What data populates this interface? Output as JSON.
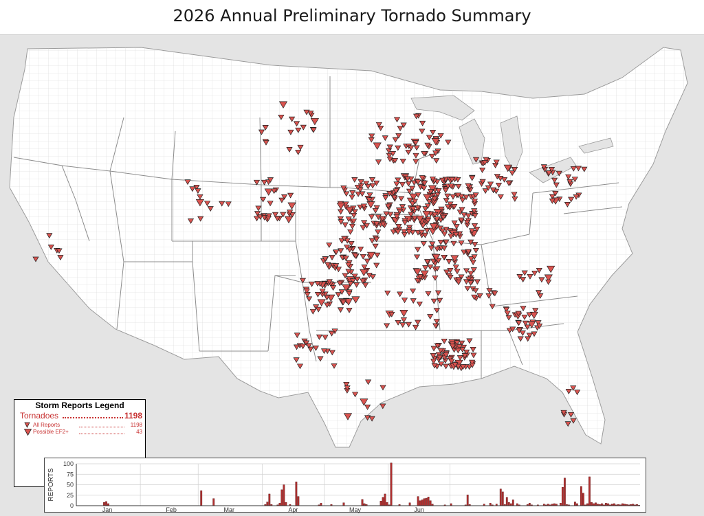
{
  "page": {
    "title": "2026 Annual Preliminary Tornado Summary"
  },
  "legend": {
    "title": "Storm Reports Legend",
    "tornadoes_label": "Tornadoes",
    "tornadoes_value": "1198",
    "all_reports_label": "All Reports",
    "all_reports_value": "1198",
    "possible_ef2_label": "Possible EF2+",
    "possible_ef2_value": "43",
    "colors": {
      "text": "#c83232",
      "marker": "#d9534f",
      "marker_outline": "#222222"
    }
  },
  "map": {
    "description_markers": "tornado report markers (red inverted triangles)"
  },
  "chart_data": {
    "type": "bar",
    "ylabel": "REPORTS",
    "ylim": [
      0,
      100
    ],
    "yticks": [
      0,
      25,
      50,
      75,
      100
    ],
    "month_labels": [
      "Jan",
      "Feb",
      "Mar",
      "Apr",
      "May",
      "Jun"
    ],
    "values": [
      0,
      0,
      0,
      0,
      0,
      0,
      0,
      0,
      0,
      0,
      0,
      0,
      0,
      8,
      10,
      5,
      0,
      0,
      0,
      0,
      0,
      0,
      0,
      0,
      0,
      0,
      0,
      0,
      0,
      0,
      0,
      0,
      0,
      0,
      0,
      0,
      0,
      0,
      0,
      0,
      0,
      0,
      0,
      0,
      0,
      0,
      0,
      0,
      0,
      0,
      0,
      0,
      0,
      0,
      0,
      0,
      0,
      0,
      0,
      0,
      36,
      0,
      0,
      0,
      0,
      0,
      17,
      0,
      0,
      0,
      0,
      0,
      0,
      0,
      0,
      0,
      0,
      0,
      0,
      0,
      0,
      0,
      0,
      0,
      0,
      0,
      0,
      0,
      0,
      0,
      0,
      3,
      9,
      28,
      3,
      0,
      0,
      2,
      6,
      38,
      50,
      8,
      0,
      3,
      0,
      0,
      57,
      22,
      0,
      0,
      0,
      0,
      0,
      0,
      0,
      0,
      0,
      2,
      6,
      0,
      0,
      0,
      0,
      3,
      0,
      0,
      0,
      0,
      0,
      7,
      0,
      0,
      0,
      0,
      0,
      0,
      0,
      0,
      15,
      5,
      3,
      0,
      0,
      0,
      0,
      0,
      0,
      11,
      20,
      28,
      8,
      2,
      102,
      0,
      0,
      0,
      3,
      0,
      0,
      0,
      0,
      7,
      0,
      0,
      0,
      22,
      12,
      14,
      17,
      18,
      21,
      12,
      4,
      0,
      0,
      0,
      0,
      0,
      2,
      0,
      0,
      5,
      0,
      0,
      0,
      0,
      0,
      0,
      2,
      26,
      3,
      0,
      0,
      0,
      0,
      0,
      0,
      4,
      0,
      0,
      6,
      2,
      0,
      4,
      0,
      40,
      33,
      3,
      20,
      8,
      5,
      14,
      0,
      5,
      2,
      0,
      0,
      0,
      3,
      6,
      2,
      0,
      0,
      2,
      0,
      0,
      4,
      2,
      4,
      2,
      4,
      5,
      4,
      0,
      6,
      44,
      66,
      3,
      2,
      0,
      0,
      9,
      5,
      0,
      46,
      30,
      2,
      5,
      69,
      8,
      5,
      7,
      4,
      3,
      5,
      2,
      6,
      5,
      2,
      4,
      5,
      2,
      3,
      2,
      5,
      4,
      3,
      2,
      3,
      4,
      2,
      3,
      1
    ]
  }
}
